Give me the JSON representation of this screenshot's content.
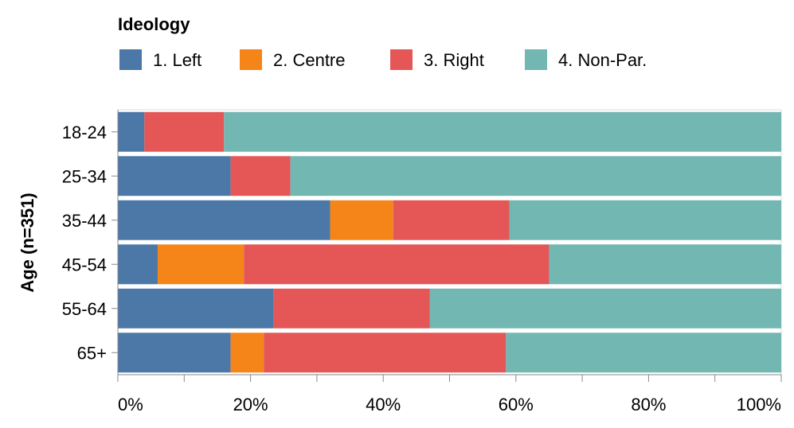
{
  "chart_data": {
    "type": "bar",
    "orientation": "horizontal",
    "stacked": "normalize",
    "legend": {
      "title": "Ideology",
      "placement": "top-left"
    },
    "ylabel": "Age (n=351)",
    "xlabel": "",
    "xlim": [
      0,
      100
    ],
    "x_ticks": [
      "0%",
      "20%",
      "40%",
      "60%",
      "80%",
      "100%"
    ],
    "categories": [
      "18-24",
      "25-34",
      "35-44",
      "45-54",
      "55-64",
      "65+"
    ],
    "series": [
      {
        "name": "1. Left",
        "color": "#4c78a8",
        "values": [
          4,
          17,
          32,
          6,
          23.5,
          17
        ]
      },
      {
        "name": "2. Centre",
        "color": "#f58518",
        "values": [
          0,
          0,
          9.5,
          13,
          0,
          5
        ]
      },
      {
        "name": "3. Right",
        "color": "#e45756",
        "values": [
          12,
          9,
          17.5,
          46,
          23.5,
          36.5
        ]
      },
      {
        "name": "4. Non-Par.",
        "color": "#72b7b2",
        "values": [
          84,
          74,
          41,
          35,
          53,
          41.5
        ]
      }
    ]
  }
}
